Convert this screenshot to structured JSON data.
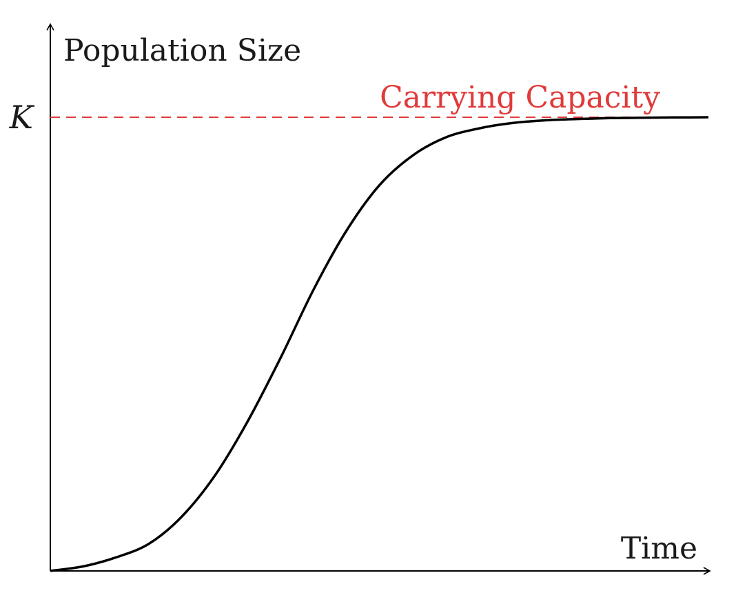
{
  "chart_data": {
    "type": "line",
    "title": "",
    "xlabel": "Time",
    "ylabel": "Population Size",
    "xlim": [
      0,
      1
    ],
    "ylim": [
      0,
      1.2
    ],
    "grid": false,
    "y_tick_labels": [
      {
        "value": 1.0,
        "label": "K"
      }
    ],
    "reference_line": {
      "value": 1.0,
      "label": "Carrying Capacity",
      "color": "#e03a3a",
      "style": "dashed"
    },
    "curve_color": "#000000",
    "series": [
      {
        "x": [
          0.0,
          0.05,
          0.1,
          0.15,
          0.2,
          0.25,
          0.3,
          0.35,
          0.4,
          0.45,
          0.5,
          0.55,
          0.6,
          0.65,
          0.7,
          0.75,
          0.8,
          0.85,
          0.9,
          0.95,
          1.0
        ],
        "values": [
          0.0,
          0.01,
          0.03,
          0.06,
          0.12,
          0.21,
          0.33,
          0.47,
          0.62,
          0.75,
          0.85,
          0.915,
          0.955,
          0.975,
          0.987,
          0.993,
          0.996,
          0.998,
          0.999,
          0.9995,
          1.0
        ]
      }
    ]
  }
}
